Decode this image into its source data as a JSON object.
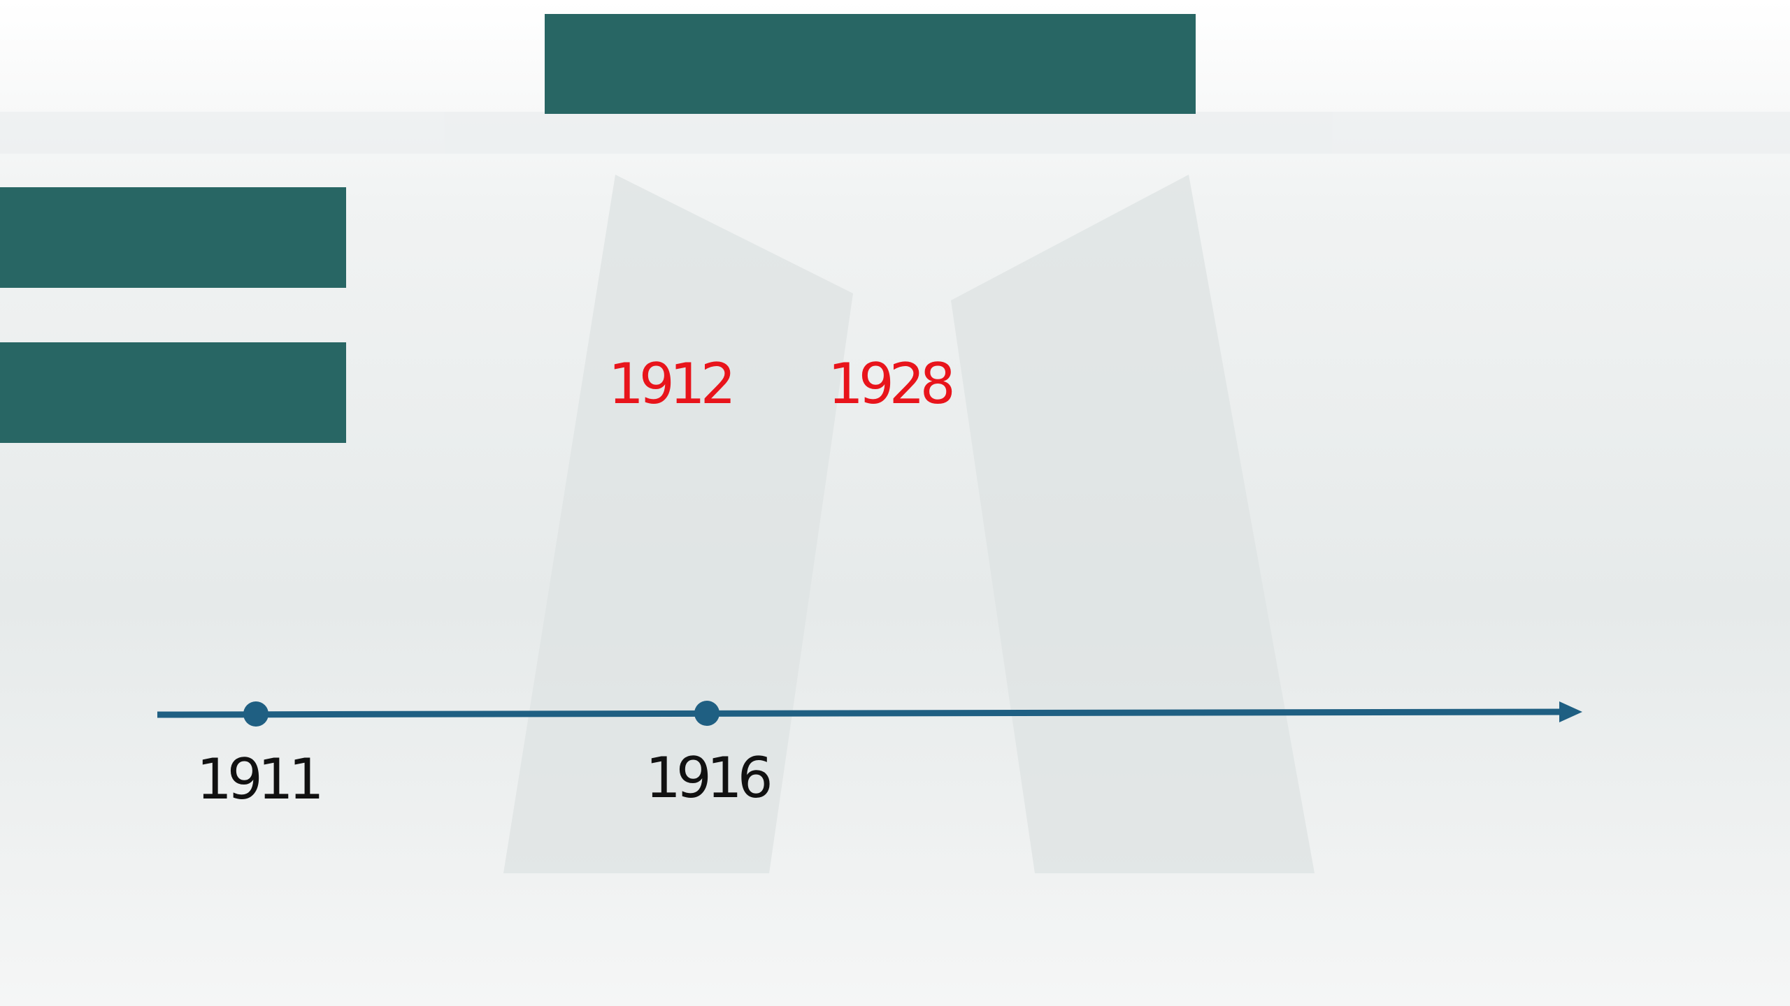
{
  "highlights": [
    "1912",
    "1928"
  ],
  "timeline": {
    "events": [
      "1911",
      "1916"
    ]
  }
}
